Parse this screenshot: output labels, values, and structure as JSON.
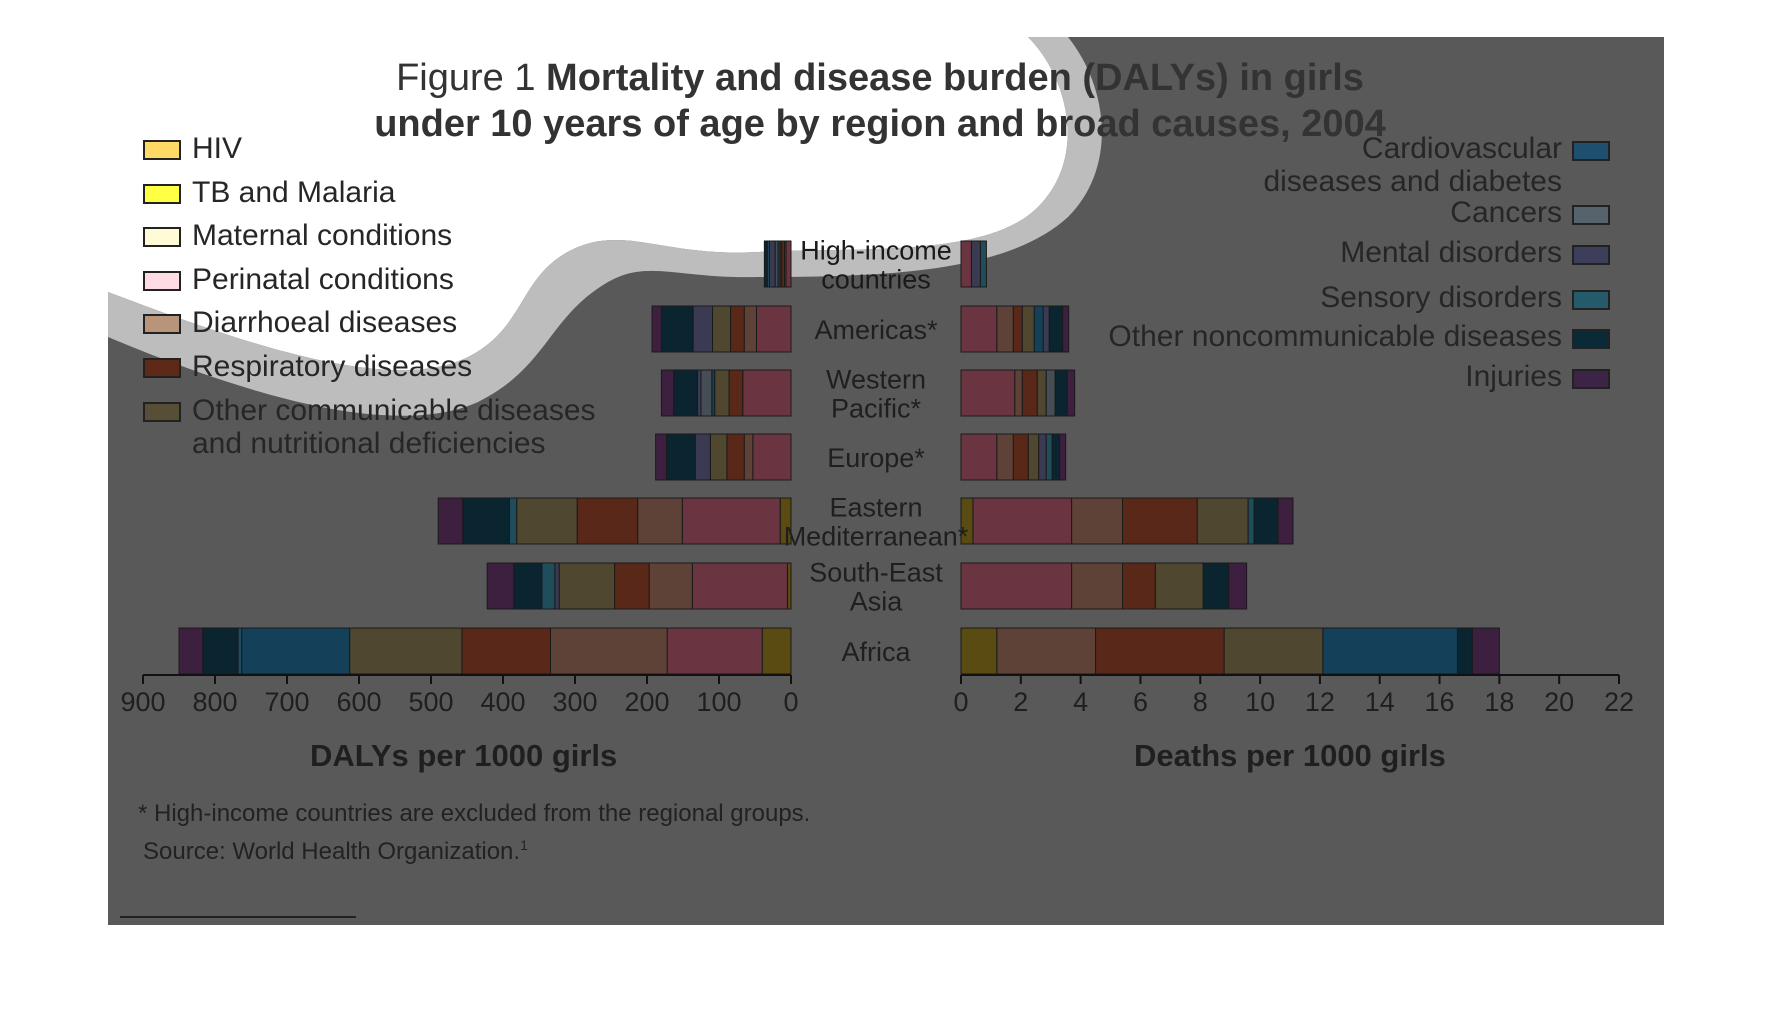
{
  "title": {
    "prefix": "Figure 1",
    "line1": "Mortality and disease burden (DALYs) in girls",
    "line2": "under 10 years of age by region and broad causes, 2004"
  },
  "legend_left": [
    {
      "label": "HIV",
      "color": "#ffd966"
    },
    {
      "label": "TB and Malaria",
      "color": "#ffff44"
    },
    {
      "label": "Maternal conditions",
      "color": "#fffbd6"
    },
    {
      "label": "Perinatal conditions",
      "color": "#ffdce4"
    },
    {
      "label": "Diarrhoeal diseases",
      "color": "#b8957a"
    },
    {
      "label": "Respiratory diseases",
      "color": "#5e2a18"
    },
    {
      "label": "Other communicable diseases",
      "label2": "and nutritional deficiencies",
      "color": "#574e37"
    }
  ],
  "legend_right": [
    {
      "label": "Cardiovascular",
      "label2": "diseases and diabetes",
      "color": "#1f4f6e"
    },
    {
      "label": "Cancers",
      "color": "#56636d"
    },
    {
      "label": "Mental disorders",
      "color": "#3d3e5a"
    },
    {
      "label": "Sensory disorders",
      "color": "#255a6a"
    },
    {
      "label": "Other noncommunicable diseases",
      "color": "#0b2a37"
    },
    {
      "label": "Injuries",
      "color": "#3c2446"
    }
  ],
  "footnote": "* High-income countries are excluded from the regional groups.",
  "source": "Source: World Health Organization.",
  "source_sup": "1",
  "chart_data": {
    "type": "bar",
    "orientation": "horizontal stacked, mirrored",
    "categories": [
      "High-income countries",
      "Americas*",
      "Western Pacific*",
      "Europe*",
      "Eastern Mediterranean*",
      "South-East Asia",
      "Africa"
    ],
    "category_lines": [
      [
        "High-income",
        "countries"
      ],
      [
        "Americas*"
      ],
      [
        "Western",
        "Pacific*"
      ],
      [
        "Europe*"
      ],
      [
        "Eastern",
        "Mediterranean*"
      ],
      [
        "South-East",
        "Asia"
      ],
      [
        "Africa"
      ]
    ],
    "stack_order": [
      "HIV",
      "TB and Malaria",
      "Maternal conditions",
      "Perinatal conditions",
      "Diarrhoeal diseases",
      "Respiratory diseases",
      "Other communicable diseases and nutritional deficiencies",
      "Cardiovascular diseases and diabetes",
      "Cancers",
      "Mental disorders",
      "Sensory disorders",
      "Other noncommunicable diseases",
      "Injuries"
    ],
    "colors": [
      "#5a4b12",
      "#5a4b12",
      "#3a3a34",
      "#6a3440",
      "#5e4238",
      "#5a2818",
      "#504731",
      "#14405a",
      "#454d55",
      "#3a3a52",
      "#1f4d5c",
      "#0a2430",
      "#3d2040"
    ],
    "dalys": {
      "xlabel": "DALYs per 1000 girls",
      "xlim": [
        0,
        900
      ],
      "ticks": [
        900,
        800,
        700,
        600,
        500,
        400,
        300,
        200,
        100,
        0
      ],
      "series": [
        {
          "region": "High-income countries",
          "values": [
            0,
            0,
            0,
            7,
            2,
            4,
            2,
            3,
            4,
            8,
            3,
            4,
            0
          ]
        },
        {
          "region": "Americas*",
          "values": [
            0,
            0,
            0,
            48,
            17,
            19,
            25,
            0,
            0,
            27,
            0,
            44,
            13
          ]
        },
        {
          "region": "Western Pacific*",
          "values": [
            0,
            0,
            0,
            67,
            0,
            19,
            20,
            4,
            15,
            5,
            0,
            33,
            17
          ]
        },
        {
          "region": "Europe*",
          "values": [
            0,
            0,
            0,
            53,
            12,
            24,
            23,
            0,
            0,
            21,
            0,
            40,
            15
          ]
        },
        {
          "region": "Eastern Mediterranean*",
          "values": [
            0,
            15,
            0,
            136,
            62,
            84,
            84,
            0,
            0,
            0,
            10,
            65,
            34
          ]
        },
        {
          "region": "South-East Asia",
          "values": [
            0,
            5,
            0,
            132,
            60,
            48,
            77,
            0,
            0,
            6,
            18,
            39,
            37
          ]
        },
        {
          "region": "Africa",
          "values": [
            0,
            40,
            0,
            132,
            162,
            123,
            156,
            150,
            0,
            0,
            5,
            49,
            33
          ]
        }
      ]
    },
    "deaths": {
      "xlabel": "Deaths per 1000 girls",
      "xlim": [
        0,
        22
      ],
      "ticks": [
        0,
        2,
        4,
        6,
        8,
        10,
        12,
        14,
        16,
        18,
        20,
        22
      ],
      "series": [
        {
          "region": "High-income countries",
          "values": [
            0,
            0,
            0,
            0.35,
            0,
            0,
            0,
            0,
            0,
            0.3,
            0.2,
            0,
            0.0
          ]
        },
        {
          "region": "Americas*",
          "values": [
            0,
            0,
            0,
            1.2,
            0.55,
            0.3,
            0.4,
            0.3,
            0,
            0.2,
            0,
            0.45,
            0.2
          ]
        },
        {
          "region": "Western Pacific*",
          "values": [
            0,
            0,
            0,
            1.8,
            0.25,
            0.5,
            0.3,
            0,
            0.3,
            0,
            0,
            0.4,
            0.25
          ]
        },
        {
          "region": "Europe*",
          "values": [
            0,
            0,
            0,
            1.2,
            0.55,
            0.5,
            0.35,
            0,
            0,
            0.25,
            0.2,
            0.25,
            0.2
          ]
        },
        {
          "region": "Eastern Mediterranean*",
          "values": [
            0,
            0.4,
            0,
            3.3,
            1.7,
            2.5,
            1.7,
            0,
            0,
            0,
            0.2,
            0.8,
            0.5
          ]
        },
        {
          "region": "South-East Asia",
          "values": [
            0,
            0,
            0,
            3.7,
            1.7,
            1.1,
            1.6,
            0,
            0,
            0,
            0,
            0.85,
            0.6
          ]
        },
        {
          "region": "Africa",
          "values": [
            0,
            1.2,
            0,
            0,
            3.3,
            4.3,
            3.3,
            4.5,
            0,
            0,
            0,
            0.5,
            0.9
          ]
        }
      ]
    }
  }
}
